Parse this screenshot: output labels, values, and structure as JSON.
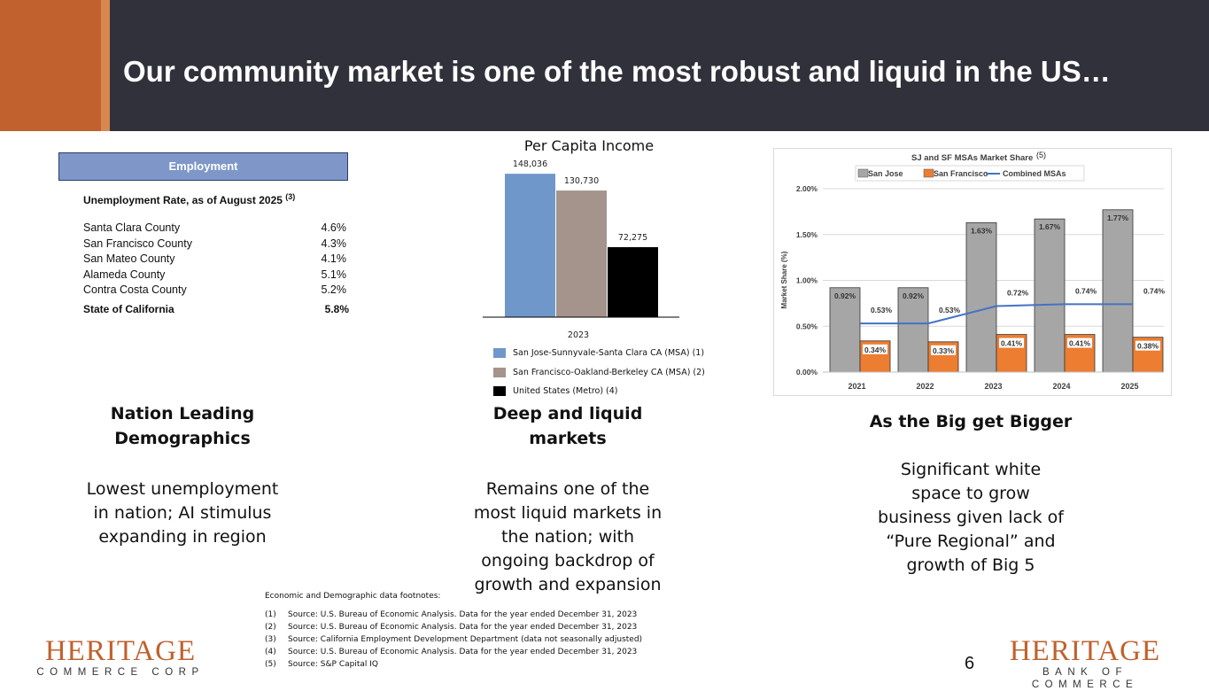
{
  "title": "Our community market is one of the most robust and liquid in the US…",
  "employment": {
    "header": "Employment",
    "subtitle": "Unemployment Rate, as of August 2025",
    "subtitle_note": "(3)",
    "rows": [
      {
        "label": "Santa Clara County",
        "value": "4.6%"
      },
      {
        "label": "San Francisco County",
        "value": "4.3%"
      },
      {
        "label": "San Mateo County",
        "value": "4.1%"
      },
      {
        "label": "Alameda County",
        "value": "5.1%"
      },
      {
        "label": "Contra Costa County",
        "value": "5.2%"
      }
    ],
    "total": {
      "label": "State of California",
      "value": "5.8%"
    }
  },
  "chart_data": [
    {
      "type": "bar",
      "title": "Per Capita Income",
      "categories": [
        "2023"
      ],
      "series": [
        {
          "name": "San Jose-Sunnyvale-Santa Clara CA (MSA) (1)",
          "values": [
            148036
          ],
          "label": "148,036",
          "color": "#6f97c9"
        },
        {
          "name": "San Francisco-Oakland-Berkeley CA (MSA) (2)",
          "values": [
            130730
          ],
          "label": "130,730",
          "color": "#a4948b"
        },
        {
          "name": "United States (Metro) (4)",
          "values": [
            72275
          ],
          "label": "72,275",
          "color": "#000000"
        }
      ],
      "ylim": [
        0,
        150000
      ],
      "xlabel": "",
      "ylabel": ""
    },
    {
      "type": "bar",
      "title": "SJ and SF MSAs Market Share",
      "title_note": "(5)",
      "categories": [
        "2021",
        "2022",
        "2023",
        "2024",
        "2025"
      ],
      "series": [
        {
          "name": "San Jose",
          "type": "bar",
          "values": [
            0.92,
            0.92,
            1.63,
            1.67,
            1.77
          ],
          "labels": [
            "0.92%",
            "0.92%",
            "1.63%",
            "1.67%",
            "1.77%"
          ],
          "color": "#a6a6a6"
        },
        {
          "name": "San Francisco",
          "type": "bar",
          "values": [
            0.34,
            0.33,
            0.41,
            0.41,
            0.38
          ],
          "labels": [
            "0.34%",
            "0.33%",
            "0.41%",
            "0.41%",
            "0.38%"
          ],
          "color": "#ed7d31"
        },
        {
          "name": "Combined MSAs",
          "type": "line",
          "values": [
            0.53,
            0.53,
            0.72,
            0.74,
            0.74
          ],
          "labels": [
            "0.53%",
            "0.53%",
            "0.72%",
            "0.74%",
            "0.74%"
          ],
          "color": "#4472c4"
        }
      ],
      "ylim": [
        0,
        2.0
      ],
      "yticks": [
        "0.00%",
        "0.50%",
        "1.00%",
        "1.50%",
        "2.00%"
      ],
      "ylabel": "Market Share (%)",
      "xlabel": "",
      "grid": true,
      "legend": "top"
    }
  ],
  "sections": {
    "left": {
      "heading": "Nation Leading Demographics",
      "body": "Lowest unemployment in nation; AI stimulus expanding in region"
    },
    "middle": {
      "heading": "Deep and liquid markets",
      "body": "Remains one of the most liquid markets in the nation; with ongoing backdrop of growth and expansion"
    },
    "right": {
      "heading": "As the Big get Bigger",
      "body": "Significant white space to grow business given lack of “Pure Regional” and growth of Big 5"
    }
  },
  "footnotes": {
    "title": "Economic and Demographic data footnotes:",
    "items": [
      {
        "num": "(1)",
        "text": "Source: U.S. Bureau of Economic Analysis. Data for the year ended December 31, 2023"
      },
      {
        "num": "(2)",
        "text": "Source: U.S. Bureau of Economic Analysis. Data for the year ended December 31, 2023"
      },
      {
        "num": "(3)",
        "text": "Source: California Employment Development Department (data not seasonally adjusted)"
      },
      {
        "num": "(4)",
        "text": "Source: U.S. Bureau of Economic Analysis. Data for the year ended December 31, 2023"
      },
      {
        "num": "(5)",
        "text": "Source: S&P Capital IQ"
      }
    ]
  },
  "logos": {
    "left": {
      "name": "HERITAGE",
      "sub": "COMMERCE CORP"
    },
    "right": {
      "name": "HERITAGE",
      "sub": "BANK OF COMMERCE"
    }
  },
  "page_number": "6"
}
